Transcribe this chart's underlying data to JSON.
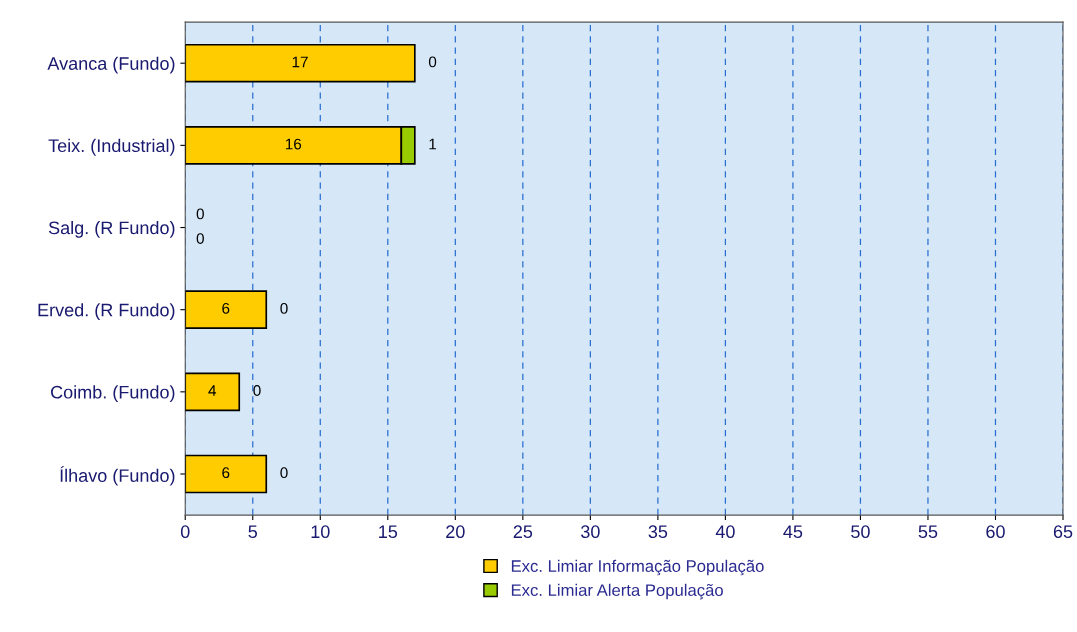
{
  "chart_data": {
    "type": "bar",
    "orientation": "horizontal",
    "stacked": true,
    "categories": [
      "Avanca (Fundo)",
      "Teix. (Industrial)",
      "Salg. (R Fundo)",
      "Erved. (R Fundo)",
      "Coimb. (Fundo)",
      "Ílhavo (Fundo)"
    ],
    "series": [
      {
        "name": "Exc. Limiar Informação População",
        "color": "#ffcc00",
        "values": [
          17,
          16,
          0,
          6,
          4,
          6
        ]
      },
      {
        "name": "Exc. Limiar Alerta População",
        "color": "#99cc00",
        "values": [
          0,
          1,
          0,
          0,
          0,
          0
        ]
      }
    ],
    "xlim": [
      0,
      65
    ],
    "xticks": [
      0,
      5,
      10,
      15,
      20,
      25,
      30,
      35,
      40,
      45,
      50,
      55,
      60,
      65
    ],
    "grid": "x",
    "legend": "bottom",
    "data_labels": true
  }
}
